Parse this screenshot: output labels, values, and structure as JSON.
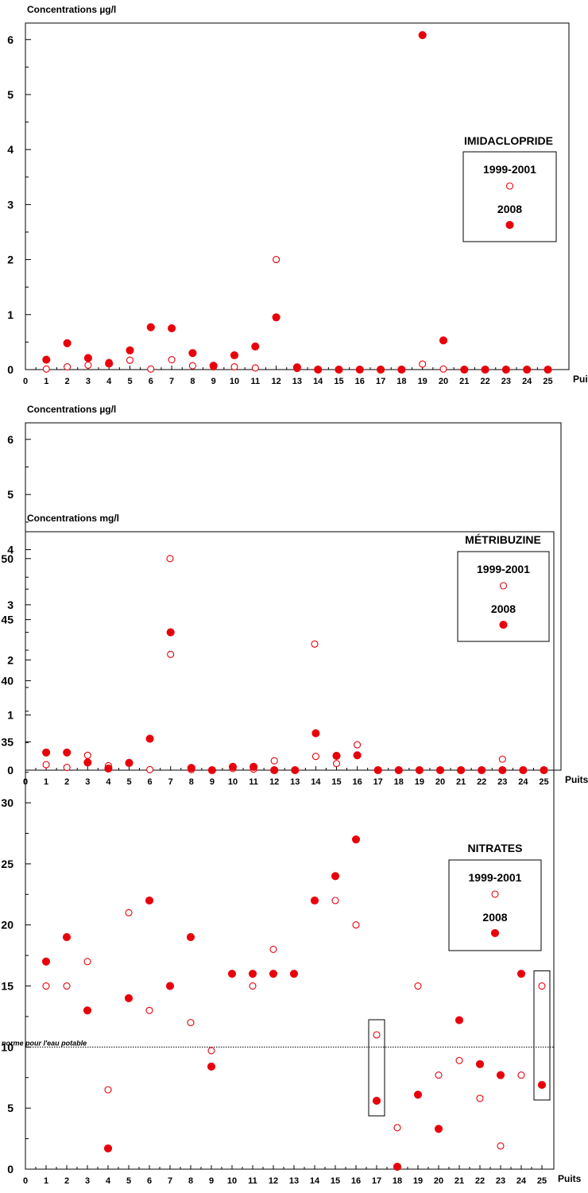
{
  "colors": {
    "series": "#e8000b",
    "axis": "#000000"
  },
  "x_unit_label": "Puits",
  "chart_data": [
    {
      "type": "scatter",
      "title": "IMIDACLOPRIDE",
      "ylabel": "Concentrations µg/l",
      "xlabel": "Puits",
      "x_ticks": [
        "0",
        "1",
        "2",
        "3",
        "4",
        "5",
        "6",
        "7",
        "8",
        "9",
        "10",
        "11",
        "12",
        "13",
        "14",
        "15",
        "16",
        "17",
        "18",
        "19",
        "20",
        "21",
        "22",
        "23",
        "24",
        "25"
      ],
      "y_ticks": [
        "0",
        "1",
        "2",
        "3",
        "4",
        "5",
        "6"
      ],
      "ylim": [
        0,
        6.3
      ],
      "legend": {
        "position": "right",
        "items": [
          "1999-2001",
          "2008"
        ]
      },
      "series": [
        {
          "name": "1999-2001",
          "marker": "open-circle",
          "x": [
            1,
            2,
            3,
            4,
            5,
            6,
            7,
            8,
            9,
            10,
            11,
            12,
            13,
            14,
            15,
            16,
            17,
            18,
            19,
            20,
            21,
            22,
            23,
            24,
            25
          ],
          "y": [
            0.01,
            0.05,
            0.08,
            0.13,
            0.17,
            0.01,
            0.18,
            0.07,
            0.05,
            0.05,
            0.03,
            2.0,
            0.02,
            0,
            0,
            0,
            0,
            0,
            0.1,
            0.01,
            0,
            0,
            0,
            0,
            0
          ]
        },
        {
          "name": "2008",
          "marker": "filled-circle",
          "x": [
            1,
            2,
            3,
            4,
            5,
            6,
            7,
            8,
            9,
            10,
            11,
            12,
            13,
            14,
            15,
            16,
            17,
            18,
            19,
            20,
            21,
            22,
            23,
            24,
            25
          ],
          "y": [
            0.18,
            0.48,
            0.21,
            0.11,
            0.35,
            0.77,
            0.75,
            0.3,
            0.07,
            0.26,
            0.42,
            0.95,
            0.04,
            0,
            0,
            0,
            0,
            0,
            6.08,
            0.53,
            0,
            0,
            0,
            0,
            0
          ]
        }
      ]
    },
    {
      "type": "scatter",
      "title": "MÉTRIBUZINE",
      "ylabel": "Concentrations µg/l",
      "xlabel": "Puits",
      "x_ticks": [
        "0",
        "1",
        "2",
        "3",
        "4",
        "5",
        "6",
        "7",
        "8",
        "9",
        "10",
        "11",
        "12",
        "13",
        "14",
        "15",
        "16",
        "17",
        "18",
        "19",
        "20",
        "21",
        "22",
        "23",
        "24",
        "25"
      ],
      "y_ticks": [
        "0",
        "1",
        "2",
        "3",
        "4",
        "5",
        "6"
      ],
      "ylim": [
        0,
        6.3
      ],
      "legend": {
        "position": "right",
        "items": [
          "1999-2001",
          "2008"
        ]
      },
      "series": [
        {
          "name": "1999-2001",
          "marker": "open-circle",
          "x": [
            1,
            2,
            3,
            4,
            5,
            6,
            7,
            8,
            9,
            10,
            11,
            12,
            13,
            14,
            15,
            16,
            17,
            18,
            19,
            20,
            21,
            22,
            23,
            24,
            25
          ],
          "y": [
            0.1,
            0.05,
            0.27,
            0.08,
            0.14,
            0.01,
            2.1,
            0.01,
            0,
            0.03,
            0.02,
            0.17,
            0,
            0.25,
            0.12,
            0.46,
            0,
            0,
            0,
            0,
            0,
            0,
            0.2,
            0,
            0
          ]
        },
        {
          "name": "2008",
          "marker": "filled-circle",
          "x": [
            1,
            2,
            3,
            4,
            5,
            6,
            7,
            8,
            9,
            10,
            11,
            12,
            13,
            14,
            15,
            16,
            17,
            18,
            19,
            20,
            21,
            22,
            23,
            24,
            25
          ],
          "y": [
            0.32,
            0.32,
            0.14,
            0.03,
            0.13,
            0.57,
            2.5,
            0.04,
            0,
            0.06,
            0.06,
            0,
            0,
            0.67,
            0.26,
            0.27,
            0,
            0,
            0,
            0,
            0,
            0,
            0,
            0,
            0
          ]
        }
      ]
    },
    {
      "type": "scatter",
      "title": "NITRATES",
      "ylabel": "Concentrations mg/l",
      "xlabel": "Puits",
      "x_ticks": [
        "0",
        "1",
        "2",
        "3",
        "4",
        "5",
        "6",
        "7",
        "8",
        "9",
        "10",
        "11",
        "12",
        "13",
        "14",
        "15",
        "16",
        "17",
        "18",
        "19",
        "20",
        "21",
        "22",
        "23",
        "24",
        "25"
      ],
      "y_ticks": [
        "0",
        "5",
        "10",
        "15",
        "20",
        "25",
        "30",
        "35",
        "40",
        "45",
        "50"
      ],
      "ylim": [
        0,
        52.2
      ],
      "legend": {
        "position": "right",
        "items": [
          "1999-2001",
          "2008"
        ]
      },
      "reference_line": {
        "label": "norme pour l'eau potable",
        "value": 10
      },
      "highlight_boxes": [
        17,
        25
      ],
      "series": [
        {
          "name": "1999-2001",
          "marker": "open-circle",
          "x": [
            1,
            2,
            3,
            4,
            5,
            6,
            7,
            8,
            9,
            10,
            11,
            12,
            13,
            14,
            15,
            16,
            17,
            18,
            19,
            20,
            21,
            22,
            23,
            24,
            25
          ],
          "y": [
            15,
            15,
            17,
            6.5,
            21,
            13,
            50,
            12,
            9.7,
            16,
            15,
            18,
            16,
            43,
            22,
            20,
            11,
            3.4,
            15,
            7.7,
            8.9,
            5.8,
            1.9,
            7.7,
            15
          ]
        },
        {
          "name": "2008",
          "marker": "filled-circle",
          "x": [
            1,
            2,
            3,
            4,
            5,
            6,
            7,
            8,
            9,
            10,
            11,
            12,
            13,
            14,
            15,
            16,
            17,
            18,
            19,
            20,
            21,
            22,
            23,
            24,
            25
          ],
          "y": [
            17,
            19,
            13,
            1.7,
            14,
            22,
            15,
            19,
            8.4,
            16,
            16,
            16,
            16,
            22,
            24,
            27,
            5.6,
            0.2,
            6.1,
            3.3,
            12.2,
            8.6,
            7.7,
            16,
            6.9
          ]
        }
      ]
    }
  ]
}
